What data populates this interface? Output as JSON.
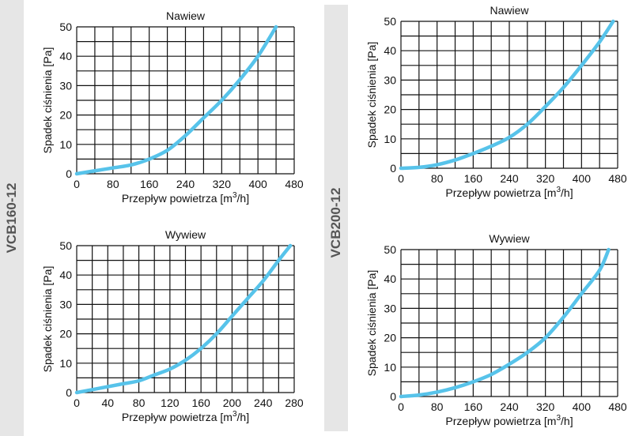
{
  "side_labels": {
    "left": "VCB160-12",
    "right": "VCB200-12"
  },
  "chart_data": [
    {
      "id": "vcb160-nawiew",
      "type": "line",
      "title": "Nawiew",
      "xlabel": "Przepływ powietrza [m3/h]",
      "ylabel": "Spadek ciśnienia [Pa]",
      "xlim": [
        0,
        480
      ],
      "ylim": [
        0,
        50
      ],
      "x_ticks": [
        0,
        80,
        160,
        240,
        320,
        400,
        480
      ],
      "y_ticks": [
        0,
        10,
        20,
        30,
        40,
        50
      ],
      "x_grid_step": 40,
      "y_grid_step": 5,
      "series": [
        {
          "name": "Nawiew",
          "color": "#57c3ea",
          "x": [
            0,
            40,
            80,
            120,
            160,
            200,
            240,
            280,
            320,
            360,
            400,
            440
          ],
          "y": [
            0,
            1,
            2,
            3,
            5,
            8,
            13,
            19,
            25,
            32,
            40,
            50
          ]
        }
      ]
    },
    {
      "id": "vcb160-wywiew",
      "type": "line",
      "title": "Wywiew",
      "xlabel": "Przepływ powietrza [m3/h]",
      "ylabel": "Spadek ciśnienia [Pa]",
      "xlim": [
        0,
        280
      ],
      "ylim": [
        0,
        50
      ],
      "x_ticks": [
        0,
        40,
        80,
        120,
        160,
        200,
        240,
        280
      ],
      "y_ticks": [
        0,
        10,
        20,
        30,
        40,
        50
      ],
      "x_grid_step": 20,
      "y_grid_step": 5,
      "series": [
        {
          "name": "Wywiew",
          "color": "#57c3ea",
          "x": [
            0,
            20,
            40,
            60,
            80,
            100,
            120,
            140,
            160,
            180,
            200,
            220,
            240,
            260,
            275
          ],
          "y": [
            0,
            1,
            2,
            3,
            4,
            6,
            8,
            11,
            15,
            20,
            26,
            32,
            38,
            45,
            50
          ]
        }
      ]
    },
    {
      "id": "vcb200-nawiew",
      "type": "line",
      "title": "Nawiew",
      "xlabel": "Przepływ powietrza [m3/h]",
      "ylabel": "Spadek ciśnienia [Pa]",
      "xlim": [
        0,
        480
      ],
      "ylim": [
        0,
        50
      ],
      "x_ticks": [
        0,
        80,
        160,
        240,
        320,
        400,
        480
      ],
      "y_ticks": [
        0,
        10,
        20,
        30,
        40,
        50
      ],
      "x_grid_step": 40,
      "y_grid_step": 5,
      "series": [
        {
          "name": "Nawiew",
          "color": "#57c3ea",
          "x": [
            0,
            40,
            80,
            120,
            160,
            200,
            240,
            280,
            320,
            360,
            400,
            440,
            470
          ],
          "y": [
            0,
            0.3,
            1.2,
            2.8,
            5,
            7.5,
            10.5,
            15,
            21,
            27.5,
            35,
            43,
            50
          ]
        }
      ]
    },
    {
      "id": "vcb200-wywiew",
      "type": "line",
      "title": "Wywiew",
      "xlabel": "Przepływ powietrza [m3/h]",
      "ylabel": "Spadek ciśnienia [Pa]",
      "xlim": [
        0,
        480
      ],
      "ylim": [
        0,
        50
      ],
      "x_ticks": [
        0,
        80,
        160,
        240,
        320,
        400,
        480
      ],
      "y_ticks": [
        0,
        10,
        20,
        30,
        40,
        50
      ],
      "x_grid_step": 40,
      "y_grid_step": 5,
      "series": [
        {
          "name": "Wywiew",
          "color": "#57c3ea",
          "x": [
            0,
            40,
            80,
            120,
            160,
            200,
            240,
            280,
            320,
            360,
            400,
            440,
            460
          ],
          "y": [
            0,
            0.5,
            1.5,
            3,
            5,
            7.5,
            11,
            15,
            20,
            27,
            35,
            43,
            50
          ]
        }
      ]
    }
  ]
}
